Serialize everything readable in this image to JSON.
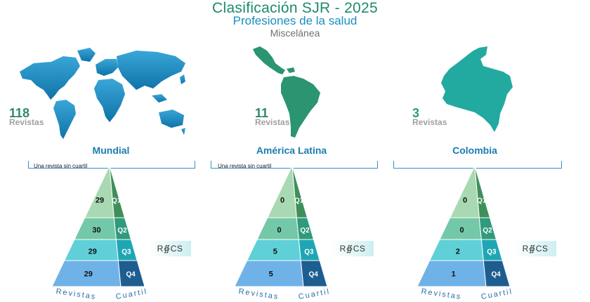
{
  "header": {
    "title": "Clasificación SJR - 2025",
    "subtitle": "Profesiones de la salud",
    "category": "Miscelánea"
  },
  "labels": {
    "journals": "Revistas",
    "quartile": "Cuartil",
    "rcs_logo": "R∯CS"
  },
  "panels": [
    {
      "region": "Mundial",
      "count": "118",
      "count_color": "#2f8a6e",
      "map_icon": "world-map-icon",
      "map_color": "#1a8ac2",
      "note": "Una revista sin cuartil",
      "quartiles": {
        "Q1": "29",
        "Q2": "30",
        "Q3": "29",
        "Q4": "29"
      }
    },
    {
      "region": "América Latina",
      "count": "11",
      "count_color": "#2f8a6e",
      "map_icon": "latin-america-map-icon",
      "map_color": "#2b9470",
      "note": "Una revista sin cuartil",
      "quartiles": {
        "Q1": "0",
        "Q2": "0",
        "Q3": "5",
        "Q4": "5"
      }
    },
    {
      "region": "Colombia",
      "count": "3",
      "count_color": "#2f9a8a",
      "map_icon": "colombia-map-icon",
      "map_color": "#22aaa0",
      "note": "",
      "quartiles": {
        "Q1": "0",
        "Q2": "0",
        "Q3": "2",
        "Q4": "1"
      }
    }
  ]
}
